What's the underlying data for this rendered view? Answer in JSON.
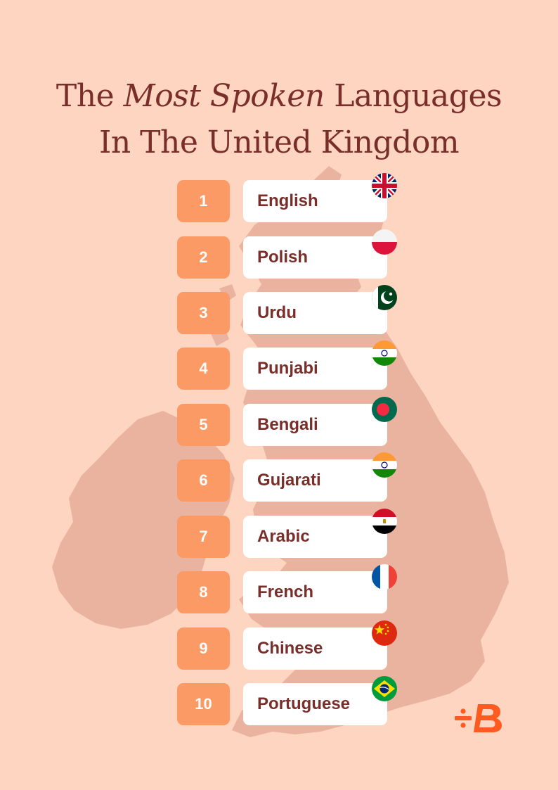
{
  "title": {
    "line1_pre": "The ",
    "line1_em": "Most Spoken",
    "line1_post": " Languages",
    "line2": "In The United Kingdom"
  },
  "languages": [
    {
      "rank": "1",
      "name": "English",
      "flag": "united-kingdom-flag-icon"
    },
    {
      "rank": "2",
      "name": "Polish",
      "flag": "poland-flag-icon"
    },
    {
      "rank": "3",
      "name": "Urdu",
      "flag": "pakistan-flag-icon"
    },
    {
      "rank": "4",
      "name": "Punjabi",
      "flag": "india-flag-icon"
    },
    {
      "rank": "5",
      "name": "Bengali",
      "flag": "bangladesh-flag-icon"
    },
    {
      "rank": "6",
      "name": "Gujarati",
      "flag": "india-flag-icon"
    },
    {
      "rank": "7",
      "name": "Arabic",
      "flag": "egypt-flag-icon"
    },
    {
      "rank": "8",
      "name": "French",
      "flag": "france-flag-icon"
    },
    {
      "rank": "9",
      "name": "Chinese",
      "flag": "china-flag-icon"
    },
    {
      "rank": "10",
      "name": "Portuguese",
      "flag": "brazil-flag-icon"
    }
  ],
  "colors": {
    "background": "#fdd5c0",
    "map": "#e9b39f",
    "title": "#7a2e2a",
    "rank_box": "#fb9a64",
    "label_box": "#ffffff",
    "logo": "#ff5a1f"
  },
  "logo": {
    "icon": "busuu-logo-icon"
  }
}
